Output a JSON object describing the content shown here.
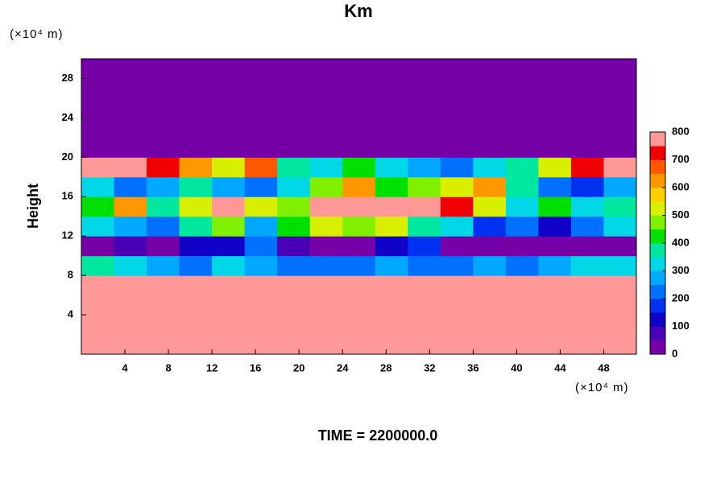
{
  "chart_data": {
    "type": "heatmap",
    "title": "Km",
    "ylabel": "Height",
    "xunit": "(×10⁴ m)",
    "yunit": "(×10⁴ m)",
    "footer": "TIME = 2200000.0",
    "xlim": [
      0,
      51
    ],
    "ylim": [
      0,
      30
    ],
    "xticks": [
      4,
      8,
      12,
      16,
      20,
      24,
      28,
      32,
      36,
      40,
      44,
      48
    ],
    "yticks": [
      4,
      8,
      12,
      16,
      20,
      24,
      28
    ],
    "x": [
      1.5,
      4.5,
      7.5,
      10.5,
      13.5,
      16.5,
      19.5,
      22.5,
      25.5,
      28.5,
      31.5,
      34.5,
      37.5,
      40.5,
      43.5,
      46.5,
      49.5
    ],
    "y": [
      1,
      3,
      5,
      7,
      9,
      11,
      13,
      15,
      17,
      19,
      21,
      23,
      25,
      27,
      29
    ],
    "z": [
      [
        800,
        800,
        800,
        800,
        800,
        800,
        800,
        800,
        800,
        800,
        800,
        800,
        800,
        800,
        800,
        800,
        800
      ],
      [
        800,
        800,
        800,
        800,
        780,
        800,
        800,
        800,
        800,
        800,
        800,
        800,
        800,
        800,
        800,
        800,
        800
      ],
      [
        800,
        760,
        800,
        800,
        800,
        800,
        800,
        800,
        800,
        800,
        800,
        800,
        800,
        760,
        800,
        800,
        800
      ],
      [
        800,
        800,
        800,
        780,
        800,
        800,
        800,
        800,
        800,
        800,
        800,
        800,
        770,
        800,
        800,
        800,
        800
      ],
      [
        350,
        300,
        250,
        200,
        300,
        250,
        200,
        200,
        200,
        250,
        200,
        200,
        250,
        200,
        250,
        300,
        300
      ],
      [
        20,
        80,
        40,
        120,
        100,
        200,
        60,
        40,
        30,
        100,
        150,
        30,
        20,
        30,
        20,
        10,
        20
      ],
      [
        300,
        250,
        200,
        350,
        450,
        250,
        400,
        500,
        450,
        500,
        350,
        300,
        150,
        200,
        100,
        200,
        300
      ],
      [
        400,
        600,
        350,
        500,
        750,
        500,
        450,
        800,
        800,
        800,
        800,
        700,
        500,
        300,
        400,
        300,
        350
      ],
      [
        300,
        200,
        250,
        350,
        250,
        200,
        300,
        450,
        600,
        400,
        450,
        500,
        600,
        350,
        200,
        150,
        250
      ],
      [
        750,
        800,
        700,
        600,
        500,
        650,
        350,
        300,
        400,
        300,
        250,
        200,
        300,
        350,
        500,
        700,
        750
      ],
      [
        0,
        0,
        0,
        0,
        0,
        0,
        0,
        0,
        0,
        0,
        0,
        0,
        0,
        0,
        0,
        0,
        0
      ],
      [
        0,
        0,
        0,
        0,
        0,
        0,
        0,
        0,
        0,
        0,
        0,
        0,
        0,
        0,
        0,
        0,
        0
      ],
      [
        0,
        0,
        0,
        0,
        0,
        0,
        0,
        0,
        0,
        0,
        0,
        0,
        0,
        0,
        0,
        0,
        0
      ],
      [
        0,
        0,
        0,
        0,
        0,
        0,
        0,
        0,
        0,
        0,
        0,
        0,
        0,
        0,
        0,
        0,
        0
      ],
      [
        0,
        0,
        0,
        0,
        0,
        0,
        0,
        0,
        0,
        0,
        0,
        0,
        0,
        0,
        0,
        0,
        0
      ]
    ],
    "clim": [
      0,
      800
    ],
    "cticks": [
      0,
      100,
      200,
      300,
      400,
      500,
      600,
      700,
      800
    ],
    "colors": [
      "#7400a6",
      "#4a00b4",
      "#1000c8",
      "#0030f0",
      "#0070ff",
      "#00a8ff",
      "#00d8e8",
      "#00e8a0",
      "#00e000",
      "#80f000",
      "#d8f000",
      "#ffd000",
      "#ff9800",
      "#ff5800",
      "#f00000",
      "#ff9896"
    ]
  }
}
